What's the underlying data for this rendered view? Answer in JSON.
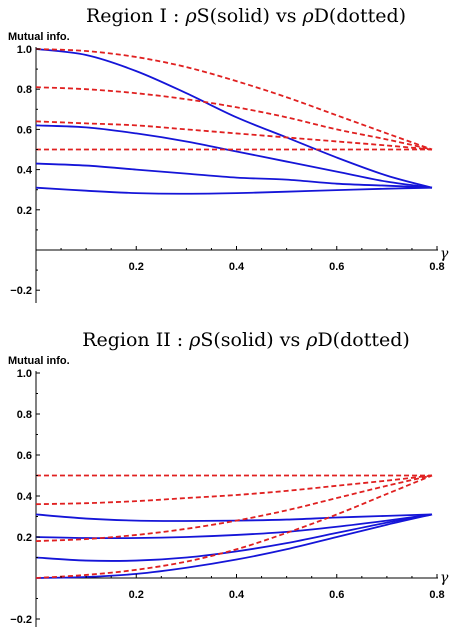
{
  "colors": {
    "solid": "#1515d8",
    "dotted": "#e02020",
    "axis": "#000000"
  },
  "chart_data": [
    {
      "type": "line",
      "title_parts": [
        "Region I : ",
        "ρ",
        "S(solid) vs ",
        "ρ",
        "D(dotted)"
      ],
      "ylabel": "Mutual info.",
      "xlabel": "γ",
      "xlim": [
        0,
        0.79
      ],
      "ylim": [
        -0.2,
        1.0
      ],
      "xticks": [
        0.2,
        0.4,
        0.6,
        0.8
      ],
      "xtick_labels": [
        "0.2",
        "0.4",
        "0.6",
        "0.8"
      ],
      "yticks": [
        -0.2,
        0.2,
        0.4,
        0.6,
        0.8,
        1.0
      ],
      "ytick_labels": [
        "−0.2",
        "0.2",
        "0.4",
        "0.6",
        "0.8",
        "1.0"
      ],
      "grid": false,
      "series": [
        {
          "style": "solid",
          "x": [
            0,
            0.1,
            0.2,
            0.3,
            0.4,
            0.5,
            0.6,
            0.7,
            0.79
          ],
          "y": [
            1.0,
            0.97,
            0.89,
            0.78,
            0.66,
            0.56,
            0.46,
            0.37,
            0.31
          ]
        },
        {
          "style": "solid",
          "x": [
            0,
            0.1,
            0.2,
            0.3,
            0.4,
            0.5,
            0.6,
            0.7,
            0.79
          ],
          "y": [
            0.62,
            0.61,
            0.58,
            0.54,
            0.49,
            0.44,
            0.39,
            0.34,
            0.31
          ]
        },
        {
          "style": "solid",
          "x": [
            0,
            0.1,
            0.2,
            0.3,
            0.4,
            0.5,
            0.6,
            0.7,
            0.79
          ],
          "y": [
            0.43,
            0.42,
            0.4,
            0.38,
            0.36,
            0.35,
            0.33,
            0.32,
            0.31
          ]
        },
        {
          "style": "solid",
          "x": [
            0,
            0.1,
            0.2,
            0.3,
            0.4,
            0.5,
            0.6,
            0.7,
            0.79
          ],
          "y": [
            0.31,
            0.295,
            0.283,
            0.28,
            0.283,
            0.29,
            0.298,
            0.305,
            0.31
          ]
        },
        {
          "style": "dotted",
          "x": [
            0,
            0.1,
            0.2,
            0.3,
            0.4,
            0.5,
            0.6,
            0.7,
            0.79
          ],
          "y": [
            1.0,
            0.99,
            0.96,
            0.91,
            0.84,
            0.76,
            0.67,
            0.58,
            0.5
          ]
        },
        {
          "style": "dotted",
          "x": [
            0,
            0.1,
            0.2,
            0.3,
            0.4,
            0.5,
            0.6,
            0.7,
            0.79
          ],
          "y": [
            0.81,
            0.8,
            0.78,
            0.75,
            0.71,
            0.66,
            0.6,
            0.55,
            0.5
          ]
        },
        {
          "style": "dotted",
          "x": [
            0,
            0.1,
            0.2,
            0.3,
            0.4,
            0.5,
            0.6,
            0.7,
            0.79
          ],
          "y": [
            0.64,
            0.63,
            0.62,
            0.6,
            0.58,
            0.56,
            0.54,
            0.52,
            0.5
          ]
        },
        {
          "style": "dotted",
          "x": [
            0,
            0.2,
            0.4,
            0.6,
            0.79
          ],
          "y": [
            0.5,
            0.5,
            0.5,
            0.5,
            0.5
          ]
        }
      ]
    },
    {
      "type": "line",
      "title_parts": [
        "Region II : ",
        "ρ",
        "S(solid) vs ",
        "ρ",
        "D(dotted)"
      ],
      "ylabel": "Mutual info.",
      "xlabel": "γ",
      "xlim": [
        0,
        0.79
      ],
      "ylim": [
        -0.2,
        1.0
      ],
      "xticks": [
        0.2,
        0.4,
        0.6,
        0.8
      ],
      "xtick_labels": [
        "0.2",
        "0.4",
        "0.6",
        "0.8"
      ],
      "yticks": [
        -0.2,
        0.2,
        0.4,
        0.6,
        0.8,
        1.0
      ],
      "ytick_labels": [
        "−0.2",
        "0.2",
        "0.4",
        "0.6",
        "0.8",
        "1.0"
      ],
      "grid": false,
      "series": [
        {
          "style": "solid",
          "x": [
            0,
            0.1,
            0.2,
            0.3,
            0.4,
            0.5,
            0.6,
            0.7,
            0.79
          ],
          "y": [
            0.31,
            0.29,
            0.28,
            0.278,
            0.28,
            0.285,
            0.295,
            0.303,
            0.31
          ]
        },
        {
          "style": "solid",
          "x": [
            0,
            0.1,
            0.2,
            0.3,
            0.4,
            0.5,
            0.6,
            0.7,
            0.79
          ],
          "y": [
            0.2,
            0.195,
            0.195,
            0.2,
            0.21,
            0.225,
            0.25,
            0.28,
            0.31
          ]
        },
        {
          "style": "solid",
          "x": [
            0,
            0.1,
            0.2,
            0.3,
            0.4,
            0.5,
            0.6,
            0.7,
            0.79
          ],
          "y": [
            0.1,
            0.085,
            0.085,
            0.1,
            0.13,
            0.17,
            0.22,
            0.27,
            0.31
          ]
        },
        {
          "style": "solid",
          "x": [
            0,
            0.1,
            0.2,
            0.3,
            0.4,
            0.5,
            0.6,
            0.7,
            0.79
          ],
          "y": [
            0.0,
            0.005,
            0.02,
            0.05,
            0.09,
            0.14,
            0.2,
            0.26,
            0.31
          ]
        },
        {
          "style": "dotted",
          "x": [
            0,
            0.2,
            0.4,
            0.6,
            0.79
          ],
          "y": [
            0.5,
            0.5,
            0.5,
            0.5,
            0.5
          ]
        },
        {
          "style": "dotted",
          "x": [
            0,
            0.1,
            0.2,
            0.3,
            0.4,
            0.5,
            0.6,
            0.7,
            0.79
          ],
          "y": [
            0.36,
            0.365,
            0.375,
            0.39,
            0.405,
            0.425,
            0.45,
            0.475,
            0.5
          ]
        },
        {
          "style": "dotted",
          "x": [
            0,
            0.1,
            0.2,
            0.3,
            0.4,
            0.5,
            0.6,
            0.7,
            0.79
          ],
          "y": [
            0.18,
            0.19,
            0.21,
            0.24,
            0.28,
            0.33,
            0.39,
            0.45,
            0.5
          ]
        },
        {
          "style": "dotted",
          "x": [
            0,
            0.1,
            0.2,
            0.3,
            0.4,
            0.5,
            0.6,
            0.7,
            0.79
          ],
          "y": [
            0.0,
            0.015,
            0.04,
            0.08,
            0.14,
            0.22,
            0.31,
            0.41,
            0.5
          ]
        }
      ]
    }
  ]
}
